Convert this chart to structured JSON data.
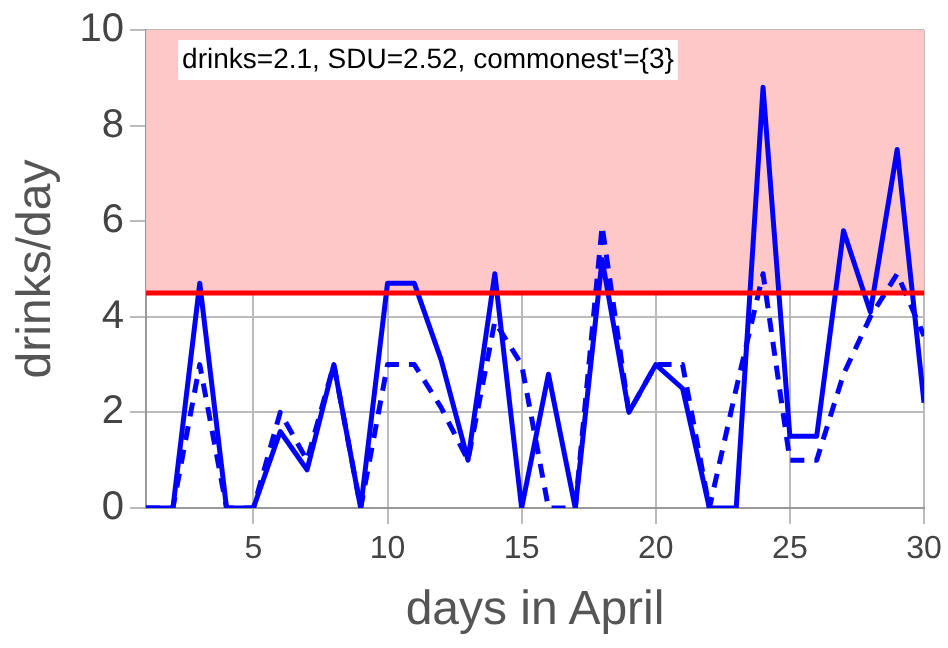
{
  "chart_data": {
    "type": "line",
    "xlabel": "days in April",
    "ylabel": "drinks/day",
    "x": [
      1,
      2,
      3,
      4,
      5,
      6,
      7,
      8,
      9,
      10,
      11,
      12,
      13,
      14,
      15,
      16,
      17,
      18,
      19,
      20,
      21,
      22,
      23,
      24,
      25,
      26,
      27,
      28,
      29,
      30
    ],
    "series": [
      {
        "color": "#0000ff",
        "line_style": "solid",
        "values": [
          0,
          0,
          4.7,
          0,
          0,
          1.6,
          0.8,
          3.0,
          0,
          4.7,
          4.7,
          3.1,
          1.0,
          4.9,
          0,
          2.8,
          0,
          5.2,
          2.0,
          3.0,
          2.5,
          0,
          0,
          8.8,
          1.5,
          1.5,
          5.8,
          4.1,
          7.5,
          2.2
        ]
      },
      {
        "color": "#0000ff",
        "line_style": "dashed",
        "values": [
          0,
          0,
          3.0,
          0,
          0,
          2.0,
          1.0,
          3.0,
          0,
          3.0,
          3.0,
          2.1,
          1.0,
          3.9,
          3.0,
          0,
          0,
          5.9,
          2.0,
          3.0,
          3.0,
          0,
          2.5,
          4.9,
          1.0,
          1.0,
          2.8,
          4.0,
          4.9,
          3.6
        ]
      }
    ],
    "xlim": [
      1,
      30
    ],
    "xticks": [
      5,
      10,
      15,
      20,
      25,
      30
    ],
    "ylim": [
      0,
      10
    ],
    "yticks": [
      0,
      2,
      4,
      6,
      8,
      10
    ],
    "ref_lines": [
      {
        "axis": "y",
        "value": 4.5,
        "color": "#ff0000"
      }
    ],
    "bands": [
      {
        "axis": "y",
        "from": 4.5,
        "to": 10,
        "color": "#ffc8c8"
      }
    ],
    "annotations": [
      "drinks=2.1, SDU=2.52, commonest'={3}"
    ],
    "grid": true,
    "legend": false,
    "marker": "none"
  }
}
